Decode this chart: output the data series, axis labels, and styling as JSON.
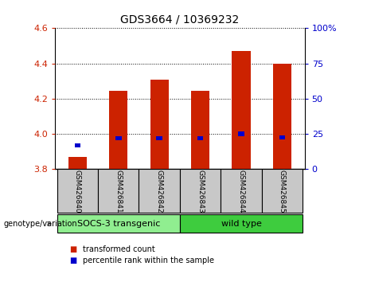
{
  "title": "GDS3664 / 10369232",
  "samples": [
    "GSM426840",
    "GSM426841",
    "GSM426842",
    "GSM426843",
    "GSM426844",
    "GSM426845"
  ],
  "red_bar_tops": [
    3.87,
    4.245,
    4.31,
    4.245,
    4.47,
    4.4
  ],
  "blue_square_y": [
    3.935,
    3.975,
    3.975,
    3.975,
    4.0,
    3.98
  ],
  "bar_bottom": 3.8,
  "ylim": [
    3.8,
    4.6
  ],
  "yticks_left": [
    3.8,
    4.0,
    4.2,
    4.4,
    4.6
  ],
  "yticks_right_labels": [
    "0",
    "25",
    "50",
    "75",
    "100%"
  ],
  "yticks_right_vals": [
    3.8,
    4.0,
    4.2,
    4.4,
    4.6
  ],
  "groups": [
    {
      "label": "SOCS-3 transgenic",
      "indices": [
        0,
        1,
        2
      ],
      "color": "#90EE90"
    },
    {
      "label": "wild type",
      "indices": [
        3,
        4,
        5
      ],
      "color": "#3ECC3E"
    }
  ],
  "bar_color": "#CC2200",
  "blue_color": "#0000CC",
  "bg_label": "#C8C8C8",
  "title_fontsize": 10,
  "tick_fontsize": 8,
  "left_tick_color": "#CC2200",
  "right_tick_color": "#0000CC",
  "legend_red_label": "transformed count",
  "legend_blue_label": "percentile rank within the sample",
  "genotype_label": "genotype/variation",
  "bar_width": 0.45,
  "blue_bar_width": 0.15,
  "blue_bar_height": 0.025
}
